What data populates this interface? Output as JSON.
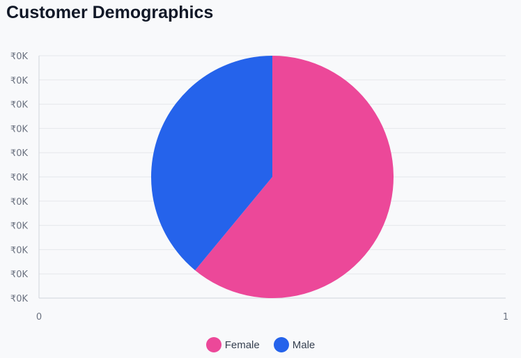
{
  "title": "Customer Demographics",
  "chart_data": {
    "type": "pie",
    "title": "Customer Demographics",
    "categories": [
      "Female",
      "Male"
    ],
    "values": [
      0.61,
      0.39
    ],
    "colors": [
      "#ec4899",
      "#2563eb"
    ],
    "y_tick_labels": [
      "₹0K",
      "₹0K",
      "₹0K",
      "₹0K",
      "₹0K",
      "₹0K",
      "₹0K",
      "₹0K",
      "₹0K",
      "₹0K",
      "₹0K"
    ],
    "x_tick_labels": [
      "0",
      "1"
    ],
    "xlim": [
      0,
      1
    ],
    "grid": true,
    "legend_position": "bottom"
  }
}
